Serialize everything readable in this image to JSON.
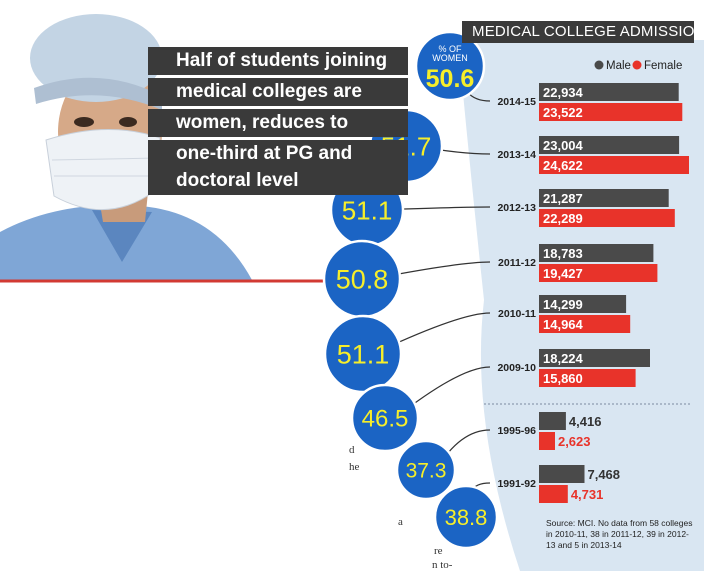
{
  "headline": {
    "lines": [
      "Half of students joining",
      "medical colleges are",
      "women, reduces to",
      "one-third at PG and",
      "doctoral level"
    ]
  },
  "chart_data": {
    "type": "bar",
    "title": "MEDICAL COLLEGE ADMISSIONS",
    "legend": {
      "placement": "top-right",
      "entries": [
        "Male",
        "Female"
      ]
    },
    "percent_label": "% OF WOMEN",
    "categories": [
      "2014-15",
      "2013-14",
      "2012-13",
      "2011-12",
      "2010-11",
      "2009-10",
      "1995-96",
      "1991-92"
    ],
    "series": [
      {
        "name": "Male",
        "values": [
          22934,
          23004,
          21287,
          18783,
          14299,
          18224,
          4416,
          7468
        ],
        "labels": [
          "22,934",
          "23,004",
          "21,287",
          "18,783",
          "14,299",
          "18,224",
          "4,416",
          "7,468"
        ]
      },
      {
        "name": "Female",
        "values": [
          23522,
          24622,
          22289,
          19427,
          14964,
          15860,
          2623,
          4731
        ],
        "labels": [
          "23,522",
          "24,622",
          "22,289",
          "19,427",
          "14,964",
          "15,860",
          "2,623",
          "4,731"
        ]
      }
    ],
    "women_percent": [
      50.6,
      51.7,
      51.1,
      50.8,
      51.1,
      46.5,
      37.3,
      38.8
    ],
    "women_percent_labels": [
      "50.6",
      "51.7",
      "51.1",
      "50.8",
      "51.1",
      "46.5",
      "37.3",
      "38.8"
    ],
    "source": "Source: MCI. No data from 58 colleges in 2010-11, 38 in 2011-12, 39 in 2012-13 and 5 in 2013-14"
  },
  "fragments": [
    "d",
    "he",
    "a",
    "re",
    "n to-"
  ],
  "colors": {
    "male": "#4a4a4a",
    "female": "#e8332a",
    "bubble": "#1b64c4",
    "bubble_text": "#f6ee2a",
    "panel": "#d9e6f2",
    "band": "#3a3a3a",
    "accent_line": "#d23a33"
  }
}
